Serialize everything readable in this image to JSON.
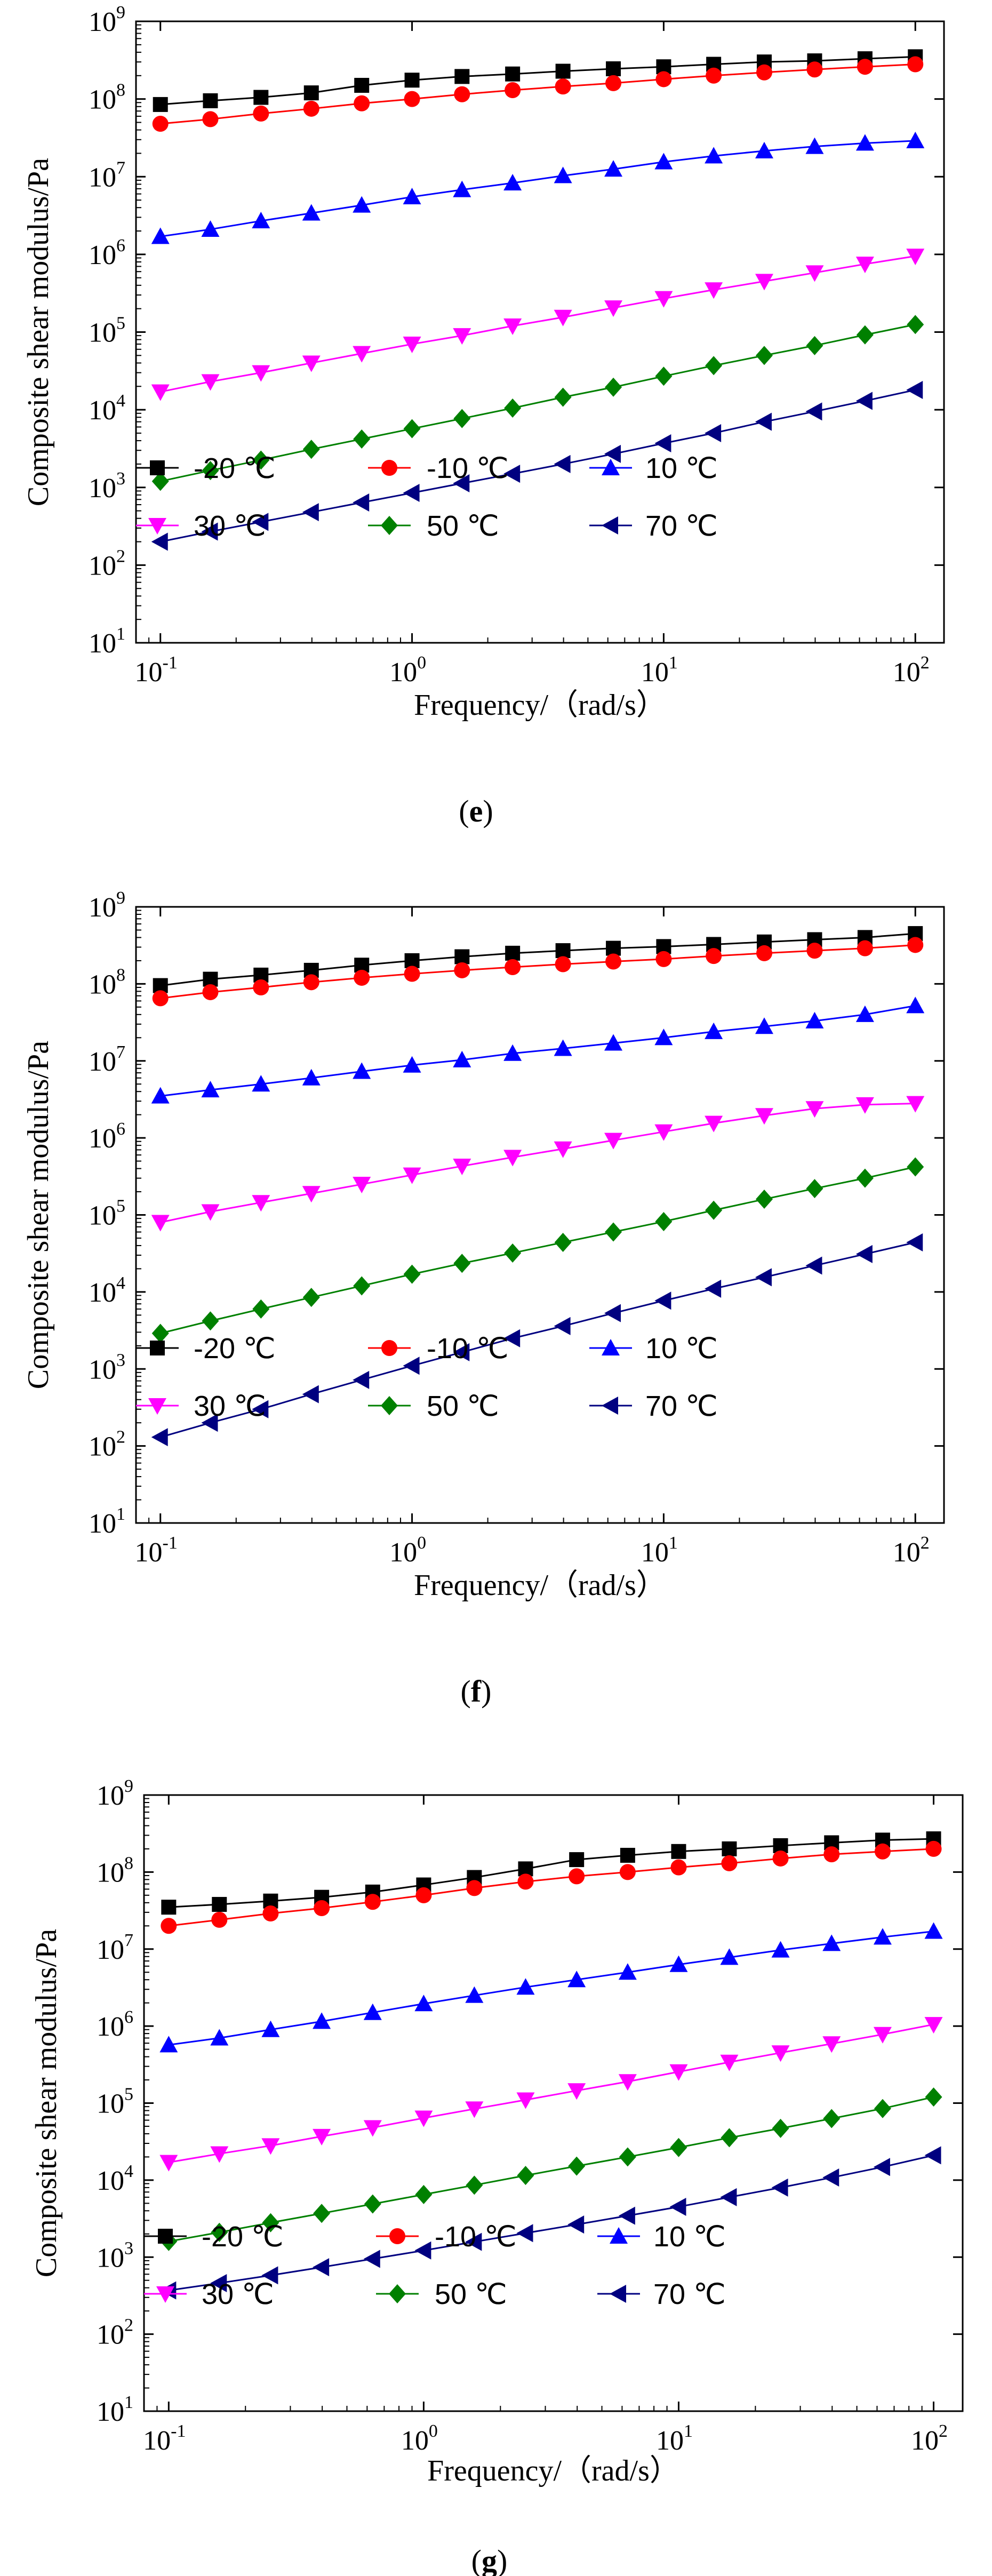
{
  "chart_data": [
    {
      "type": "line",
      "caption": "e",
      "xlabel": "Frequency/（rad/s）",
      "ylabel": "Composite shear modulus/Pa",
      "xscale": "log",
      "yscale": "log",
      "xlim": [
        0.08,
        130
      ],
      "ylim": [
        10,
        1000000000
      ],
      "xticks": [
        0.1,
        1,
        10,
        100
      ],
      "xtick_exps": [
        "-1",
        "0",
        "1",
        "2"
      ],
      "yticks": [
        10,
        100,
        1000,
        10000,
        100000,
        1000000,
        10000000,
        100000000,
        1000000000
      ],
      "ytick_exps": [
        "1",
        "2",
        "3",
        "4",
        "5",
        "6",
        "7",
        "8",
        "9"
      ],
      "tick_base": "10",
      "x": [
        0.1,
        0.158,
        0.251,
        0.398,
        0.631,
        1,
        1.58,
        2.51,
        3.98,
        6.31,
        10,
        15.8,
        25.1,
        39.8,
        63.1,
        100
      ],
      "series": [
        {
          "name": "-20 ℃",
          "color": "#000000",
          "marker": "square",
          "values": [
            85000000,
            95000000,
            105000000,
            120000000,
            150000000,
            175000000,
            195000000,
            210000000,
            228000000,
            245000000,
            260000000,
            280000000,
            300000000,
            310000000,
            330000000,
            350000000
          ]
        },
        {
          "name": "-10 ℃",
          "color": "#ff0000",
          "marker": "circle",
          "values": [
            48000000,
            55000000,
            65000000,
            75000000,
            88000000,
            100000000,
            115000000,
            130000000,
            145000000,
            160000000,
            180000000,
            200000000,
            220000000,
            240000000,
            260000000,
            280000000
          ]
        },
        {
          "name": "10 ℃",
          "color": "#0000ff",
          "marker": "triangle-up",
          "values": [
            1700000,
            2100000,
            2700000,
            3400000,
            4300000,
            5500000,
            6800000,
            8300000,
            10300000,
            12500000,
            15500000,
            18500000,
            21500000,
            24500000,
            27000000,
            29000000
          ]
        },
        {
          "name": "30 ℃",
          "color": "#ff00ff",
          "marker": "triangle-down",
          "values": [
            17000,
            23000,
            30000,
            40000,
            53000,
            70000,
            90000,
            120000,
            155000,
            205000,
            270000,
            350000,
            450000,
            580000,
            750000,
            950000
          ]
        },
        {
          "name": "50 ℃",
          "color": "#008000",
          "marker": "diamond",
          "values": [
            1200,
            1650,
            2250,
            3100,
            4200,
            5700,
            7700,
            10500,
            14500,
            19500,
            27000,
            37000,
            50000,
            67000,
            92000,
            125000
          ]
        },
        {
          "name": "70 ℃",
          "color": "#000080",
          "marker": "triangle-left",
          "values": [
            200,
            270,
            360,
            480,
            640,
            850,
            1130,
            1500,
            2000,
            2700,
            3700,
            5000,
            7000,
            9500,
            13000,
            18000
          ]
        }
      ]
    },
    {
      "type": "line",
      "caption": "f",
      "xlabel": "Frequency/（rad/s）",
      "ylabel": "Composite shear modulus/Pa",
      "xscale": "log",
      "yscale": "log",
      "xlim": [
        0.08,
        130
      ],
      "ylim": [
        10,
        1000000000
      ],
      "xticks": [
        0.1,
        1,
        10,
        100
      ],
      "xtick_exps": [
        "-1",
        "0",
        "1",
        "2"
      ],
      "yticks": [
        10,
        100,
        1000,
        10000,
        100000,
        1000000,
        10000000,
        100000000,
        1000000000
      ],
      "ytick_exps": [
        "1",
        "2",
        "3",
        "4",
        "5",
        "6",
        "7",
        "8",
        "9"
      ],
      "tick_base": "10",
      "x": [
        0.1,
        0.158,
        0.251,
        0.398,
        0.631,
        1,
        1.58,
        2.51,
        3.98,
        6.31,
        10,
        15.8,
        25.1,
        39.8,
        63.1,
        100
      ],
      "series": [
        {
          "name": "-20 ℃",
          "color": "#000000",
          "marker": "square",
          "values": [
            95000000,
            115000000,
            130000000,
            150000000,
            175000000,
            200000000,
            225000000,
            250000000,
            270000000,
            290000000,
            305000000,
            325000000,
            350000000,
            375000000,
            400000000,
            450000000
          ]
        },
        {
          "name": "-10 ℃",
          "color": "#ff0000",
          "marker": "circle",
          "values": [
            65000000,
            78000000,
            90000000,
            105000000,
            120000000,
            135000000,
            150000000,
            165000000,
            180000000,
            195000000,
            210000000,
            230000000,
            250000000,
            270000000,
            290000000,
            320000000
          ]
        },
        {
          "name": "10 ℃",
          "color": "#0000ff",
          "marker": "triangle-up",
          "values": [
            3500000,
            4200000,
            5000000,
            6000000,
            7300000,
            8800000,
            10300000,
            12500000,
            14500000,
            17000000,
            20000000,
            24000000,
            28000000,
            33000000,
            40000000,
            52000000
          ]
        },
        {
          "name": "30 ℃",
          "color": "#ff00ff",
          "marker": "triangle-down",
          "values": [
            80000,
            110000,
            145000,
            190000,
            250000,
            330000,
            430000,
            560000,
            720000,
            930000,
            1200000,
            1550000,
            1950000,
            2400000,
            2700000,
            2800000
          ]
        },
        {
          "name": "50 ℃",
          "color": "#008000",
          "marker": "diamond",
          "values": [
            2900,
            4200,
            6000,
            8500,
            12000,
            17000,
            23500,
            32000,
            44000,
            60000,
            82000,
            115000,
            160000,
            220000,
            300000,
            420000
          ]
        },
        {
          "name": "70 ℃",
          "color": "#000080",
          "marker": "triangle-left",
          "values": [
            130,
            200,
            300,
            470,
            720,
            1100,
            1650,
            2500,
            3600,
            5300,
            7700,
            11000,
            15500,
            22000,
            31000,
            44000
          ]
        }
      ]
    },
    {
      "type": "line",
      "caption": "g",
      "xlabel": "Frequency/（rad/s）",
      "ylabel": "Composite shear modulus/Pa",
      "xscale": "log",
      "yscale": "log",
      "xlim": [
        0.08,
        130
      ],
      "ylim": [
        10,
        1000000000
      ],
      "xticks": [
        0.1,
        1,
        10,
        100
      ],
      "xtick_exps": [
        "-1",
        "0",
        "1",
        "2"
      ],
      "yticks": [
        10,
        100,
        1000,
        10000,
        100000,
        1000000,
        10000000,
        100000000,
        1000000000
      ],
      "ytick_exps": [
        "1",
        "2",
        "3",
        "4",
        "5",
        "6",
        "7",
        "8",
        "9"
      ],
      "tick_base": "10",
      "x": [
        0.1,
        0.158,
        0.251,
        0.398,
        0.631,
        1,
        1.58,
        2.51,
        3.98,
        6.31,
        10,
        15.8,
        25.1,
        39.8,
        63.1,
        100
      ],
      "series": [
        {
          "name": "-20 ℃",
          "color": "#000000",
          "marker": "square",
          "values": [
            35000000,
            38000000,
            42000000,
            47000000,
            55000000,
            68000000,
            85000000,
            110000000,
            145000000,
            165000000,
            185000000,
            200000000,
            220000000,
            240000000,
            260000000,
            270000000
          ]
        },
        {
          "name": "-10 ℃",
          "color": "#ff0000",
          "marker": "circle",
          "values": [
            20000000,
            24000000,
            29000000,
            34000000,
            41000000,
            50000000,
            62000000,
            75000000,
            88000000,
            100000000,
            115000000,
            130000000,
            150000000,
            170000000,
            185000000,
            200000000
          ]
        },
        {
          "name": "10 ℃",
          "color": "#0000ff",
          "marker": "triangle-up",
          "values": [
            570000,
            700000,
            900000,
            1150000,
            1500000,
            1950000,
            2500000,
            3200000,
            4000000,
            5000000,
            6300000,
            7800000,
            9700000,
            11800000,
            14300000,
            17000000
          ]
        },
        {
          "name": "30 ℃",
          "color": "#ff00ff",
          "marker": "triangle-down",
          "values": [
            17000,
            22000,
            28000,
            37000,
            48000,
            64000,
            84000,
            110000,
            145000,
            190000,
            255000,
            340000,
            450000,
            590000,
            780000,
            1050000
          ]
        },
        {
          "name": "50 ℃",
          "color": "#008000",
          "marker": "diamond",
          "values": [
            1600,
            2100,
            2800,
            3700,
            4900,
            6500,
            8600,
            11500,
            15200,
            20000,
            26500,
            35500,
            47000,
            63000,
            85000,
            120000
          ]
        },
        {
          "name": "70 ℃",
          "color": "#000080",
          "marker": "triangle-left",
          "values": [
            370,
            460,
            580,
            740,
            950,
            1220,
            1580,
            2050,
            2650,
            3450,
            4500,
            6000,
            8000,
            10800,
            14800,
            21000
          ]
        }
      ]
    }
  ]
}
